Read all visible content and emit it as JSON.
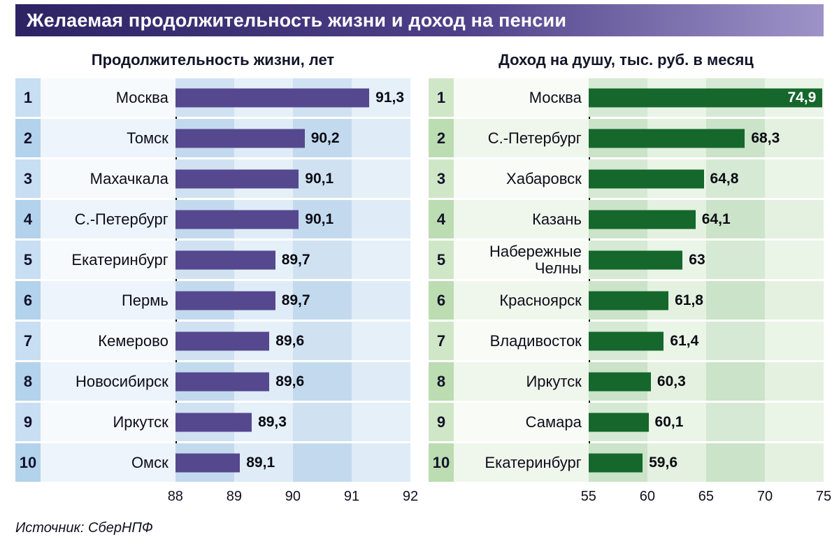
{
  "page": {
    "title": "Желаемая продолжительность жизни и доход на пенсии",
    "source": "Источник: СберНПФ",
    "title_bar_gradient": [
      "#2d2364",
      "#4e4088",
      "#9e93c8"
    ]
  },
  "chart_data": [
    {
      "type": "bar",
      "orientation": "horizontal",
      "title": "Продолжительность жизни, лет",
      "ranks": [
        1,
        2,
        3,
        4,
        5,
        6,
        7,
        8,
        9,
        10
      ],
      "categories": [
        "Москва",
        "Томск",
        "Махачкала",
        "С.-Петербург",
        "Екатеринбург",
        "Пермь",
        "Кемерово",
        "Новосибирск",
        "Иркутск",
        "Омск"
      ],
      "values": [
        91.3,
        90.2,
        90.1,
        90.1,
        89.7,
        89.7,
        89.6,
        89.6,
        89.3,
        89.1
      ],
      "value_labels": [
        "91,3",
        "90,2",
        "90,1",
        "90,1",
        "89,7",
        "89,7",
        "89,6",
        "89,6",
        "89,3",
        "89,1"
      ],
      "xlim": [
        88,
        92
      ],
      "xticks": [
        88,
        89,
        90,
        91,
        92
      ],
      "grid": "vertical-bands",
      "legend": "none",
      "theme": {
        "bar": "#55488f",
        "band_a": "#c3daee",
        "band_b": "#dfecf7",
        "rank_a": "#b3d2ec",
        "rank_b": "#c8def2",
        "label_a": "#edf4fb",
        "label_b": "#f7fafd"
      }
    },
    {
      "type": "bar",
      "orientation": "horizontal",
      "title": "Доход на душу, тыс. руб. в месяц",
      "ranks": [
        1,
        2,
        3,
        4,
        5,
        6,
        7,
        8,
        9,
        10
      ],
      "categories": [
        "Москва",
        "С.-Петербург",
        "Хабаровск",
        "Казань",
        "Набережные Челны",
        "Красноярск",
        "Владивосток",
        "Иркутск",
        "Самара",
        "Екатеринбург"
      ],
      "values": [
        74.9,
        68.3,
        64.8,
        64.1,
        63,
        61.8,
        61.4,
        60.3,
        60.1,
        59.6
      ],
      "value_labels": [
        "74,9",
        "68,3",
        "64,8",
        "64,1",
        "63",
        "61,8",
        "61,4",
        "60,3",
        "60,1",
        "59,6"
      ],
      "xlim": [
        55,
        75
      ],
      "xticks": [
        55,
        60,
        65,
        70,
        75
      ],
      "grid": "vertical-bands",
      "legend": "none",
      "theme": {
        "bar": "#15672c",
        "band_a": "#cbe3c8",
        "band_b": "#e4f1e0",
        "rank_a": "#bcdcb2",
        "rank_b": "#d0e7c7",
        "label_a": "#eff7ec",
        "label_b": "#f8fbf6"
      }
    }
  ]
}
